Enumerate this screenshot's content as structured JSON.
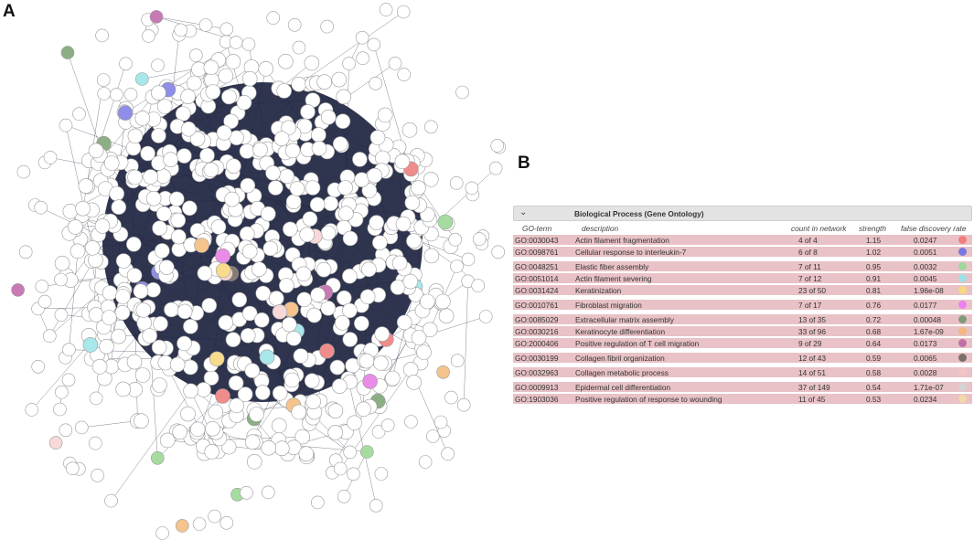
{
  "panel_a": {
    "label": "A"
  },
  "panel_b": {
    "label": "B"
  },
  "network": {
    "edge_color": "#1d2440",
    "node_fill": "#ffffff",
    "node_stroke": "#9a9a9a",
    "highlight_colors": [
      "#f08c8c",
      "#8e8ee8",
      "#a6dca0",
      "#a8e8ec",
      "#f6dc8c",
      "#e88ce8",
      "#8cae84",
      "#f4c48c",
      "#c87ab4",
      "#8a7a74",
      "#f8d8d8",
      "#d8d8d8"
    ]
  },
  "go_table": {
    "header_title": "Biological Process (Gene Ontology)",
    "columns": {
      "term": "GO-term",
      "description": "description",
      "count": "count in network",
      "strength": "strength",
      "fdr": "false discovery rate"
    },
    "rows": [
      {
        "term": "GO:0030043",
        "description": "Actin filament fragmentation",
        "count": "4 of 4",
        "strength": "1.15",
        "fdr": "0.0247",
        "color": "#f08080"
      },
      {
        "term": "GO:0098761",
        "description": "Cellular response to interleukin-7",
        "count": "6 of 8",
        "strength": "1.02",
        "fdr": "0.0051",
        "color": "#7878e0"
      },
      {
        "term": "GO:0048251",
        "description": "Elastic fiber assembly",
        "count": "7 of 11",
        "strength": "0.95",
        "fdr": "0.0032",
        "color": "#9ed89a"
      },
      {
        "term": "GO:0051014",
        "description": "Actin filament severing",
        "count": "7 of 12",
        "strength": "0.91",
        "fdr": "0.0045",
        "color": "#9ee0e8"
      },
      {
        "term": "GO:0031424",
        "description": "Keratinization",
        "count": "23 of 50",
        "strength": "0.81",
        "fdr": "1.96e-08",
        "color": "#f6d880"
      },
      {
        "term": "GO:0010761",
        "description": "Fibroblast migration",
        "count": "7 of 17",
        "strength": "0.76",
        "fdr": "0.0177",
        "color": "#ec80ec"
      },
      {
        "term": "GO:0085029",
        "description": "Extracellular matrix assembly",
        "count": "13 of 35",
        "strength": "0.72",
        "fdr": "0.00048",
        "color": "#809c78"
      },
      {
        "term": "GO:0030216",
        "description": "Keratinocyte differentiation",
        "count": "33 of 96",
        "strength": "0.68",
        "fdr": "1.67e-09",
        "color": "#f2b880"
      },
      {
        "term": "GO:2000406",
        "description": "Positive regulation of T cell migration",
        "count": "9 of 29",
        "strength": "0.64",
        "fdr": "0.0173",
        "color": "#c070a8"
      },
      {
        "term": "GO:0030199",
        "description": "Collagen fibril organization",
        "count": "12 of 43",
        "strength": "0.59",
        "fdr": "0.0065",
        "color": "#7c6e68"
      },
      {
        "term": "GO:0032963",
        "description": "Collagen metabolic process",
        "count": "14 of 51",
        "strength": "0.58",
        "fdr": "0.0028",
        "color": "#f4c4c4"
      },
      {
        "term": "GO:0009913",
        "description": "Epidermal cell differentiation",
        "count": "37 of 149",
        "strength": "0.54",
        "fdr": "1.71e-07",
        "color": "#d4d4d4"
      },
      {
        "term": "GO:1903036",
        "description": "Positive regulation of response to wounding",
        "count": "11 of 45",
        "strength": "0.53",
        "fdr": "0.0234",
        "color": "#f0d8a8"
      }
    ]
  }
}
